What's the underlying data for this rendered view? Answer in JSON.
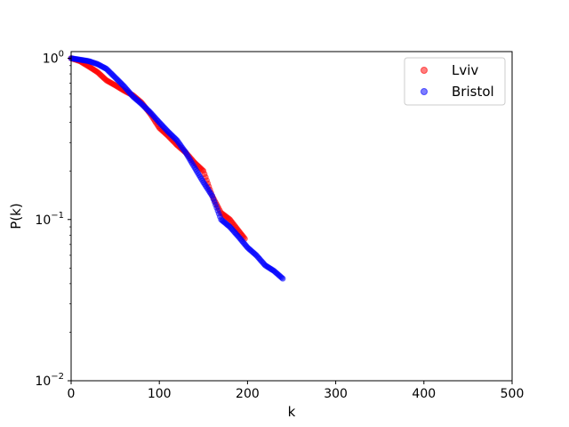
{
  "chart_data": {
    "type": "scatter",
    "title": "",
    "xlabel": "k",
    "ylabel": "P(k)",
    "xlim": [
      0,
      500
    ],
    "ylim": [
      0.01,
      1.1
    ],
    "yscale": "log",
    "grid": false,
    "legend_position": "top-right",
    "x_ticks": [
      0,
      100,
      200,
      300,
      400,
      500
    ],
    "x_tick_labels": [
      "0",
      "100",
      "200",
      "300",
      "400",
      "500"
    ],
    "y_ticks": [
      1,
      0.1,
      0.01
    ],
    "y_tick_labels": [
      "10^0",
      "10^-1",
      "10^-2"
    ],
    "series": [
      {
        "name": "Lviv",
        "color": "#ff0000",
        "points": [
          [
            0,
            1.0
          ],
          [
            10,
            0.96
          ],
          [
            20,
            0.89
          ],
          [
            30,
            0.82
          ],
          [
            40,
            0.73
          ],
          [
            50,
            0.68
          ],
          [
            60,
            0.63
          ],
          [
            70,
            0.59
          ],
          [
            80,
            0.53
          ],
          [
            90,
            0.45
          ],
          [
            100,
            0.37
          ],
          [
            110,
            0.33
          ],
          [
            120,
            0.29
          ],
          [
            130,
            0.26
          ],
          [
            140,
            0.225
          ],
          [
            150,
            0.2
          ],
          [
            160,
            0.14
          ],
          [
            170,
            0.11
          ],
          [
            180,
            0.1
          ],
          [
            190,
            0.085
          ],
          [
            197,
            0.076
          ]
        ]
      },
      {
        "name": "Bristol",
        "color": "#0000ff",
        "points": [
          [
            0,
            1.0
          ],
          [
            10,
            0.98
          ],
          [
            20,
            0.96
          ],
          [
            30,
            0.92
          ],
          [
            40,
            0.86
          ],
          [
            50,
            0.76
          ],
          [
            60,
            0.67
          ],
          [
            70,
            0.58
          ],
          [
            80,
            0.52
          ],
          [
            90,
            0.46
          ],
          [
            100,
            0.4
          ],
          [
            110,
            0.35
          ],
          [
            120,
            0.31
          ],
          [
            130,
            0.26
          ],
          [
            140,
            0.21
          ],
          [
            150,
            0.17
          ],
          [
            160,
            0.14
          ],
          [
            170,
            0.1
          ],
          [
            180,
            0.09
          ],
          [
            190,
            0.078
          ],
          [
            200,
            0.067
          ],
          [
            210,
            0.06
          ],
          [
            220,
            0.052
          ],
          [
            230,
            0.048
          ],
          [
            240,
            0.043
          ]
        ]
      }
    ]
  }
}
